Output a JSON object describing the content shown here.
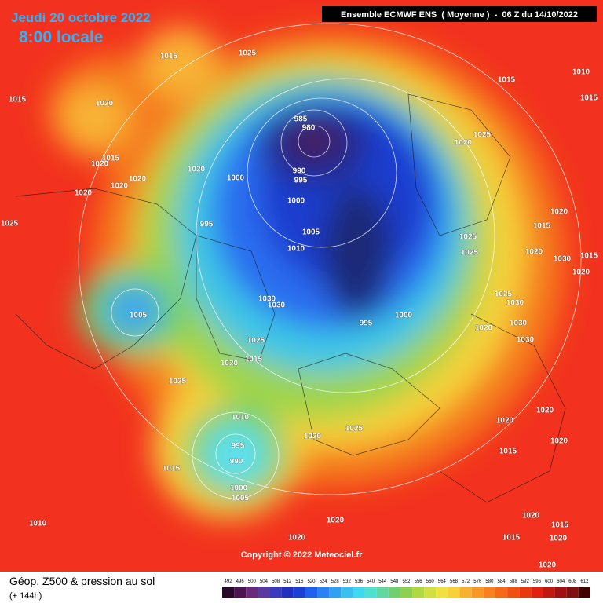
{
  "header": {
    "title": "Jeudi 20 octobre 2022",
    "time": "8:00 locale",
    "model": "Ensemble ECMWF ENS  ( Moyenne )  -  06 Z du 14/10/2022"
  },
  "isobar_labels": [
    1015,
    1025,
    1015,
    1010,
    1015,
    1020,
    1015,
    985,
    980,
    1020,
    1025,
    1015,
    1020,
    1020,
    1020,
    1020,
    1000,
    990,
    995,
    1020,
    1000,
    1025,
    995,
    1005,
    1020,
    1015,
    1025,
    1025,
    1010,
    1020,
    1030,
    1015,
    1020,
    1030,
    1030,
    1025,
    1030,
    1005,
    995,
    1000,
    1020,
    1030,
    1025,
    1030,
    1020,
    1015,
    1025,
    1020,
    1010,
    1020,
    1025,
    995,
    990,
    1020,
    1020,
    1015,
    1015,
    1000,
    1005,
    1010,
    1020,
    1020,
    1015,
    1020,
    1015,
    1020,
    1020
  ],
  "copyright": "Copyright © 2022 Meteociel.fr",
  "footer": {
    "title": "Géop. Z500 & pression au sol",
    "lead": "(+ 144h)"
  },
  "colorbar": {
    "levels": [
      492,
      496,
      500,
      504,
      508,
      512,
      516,
      520,
      524,
      528,
      532,
      536,
      540,
      544,
      548,
      552,
      556,
      560,
      564,
      568,
      572,
      576,
      580,
      584,
      588,
      592,
      596,
      600,
      604,
      608,
      612
    ]
  }
}
